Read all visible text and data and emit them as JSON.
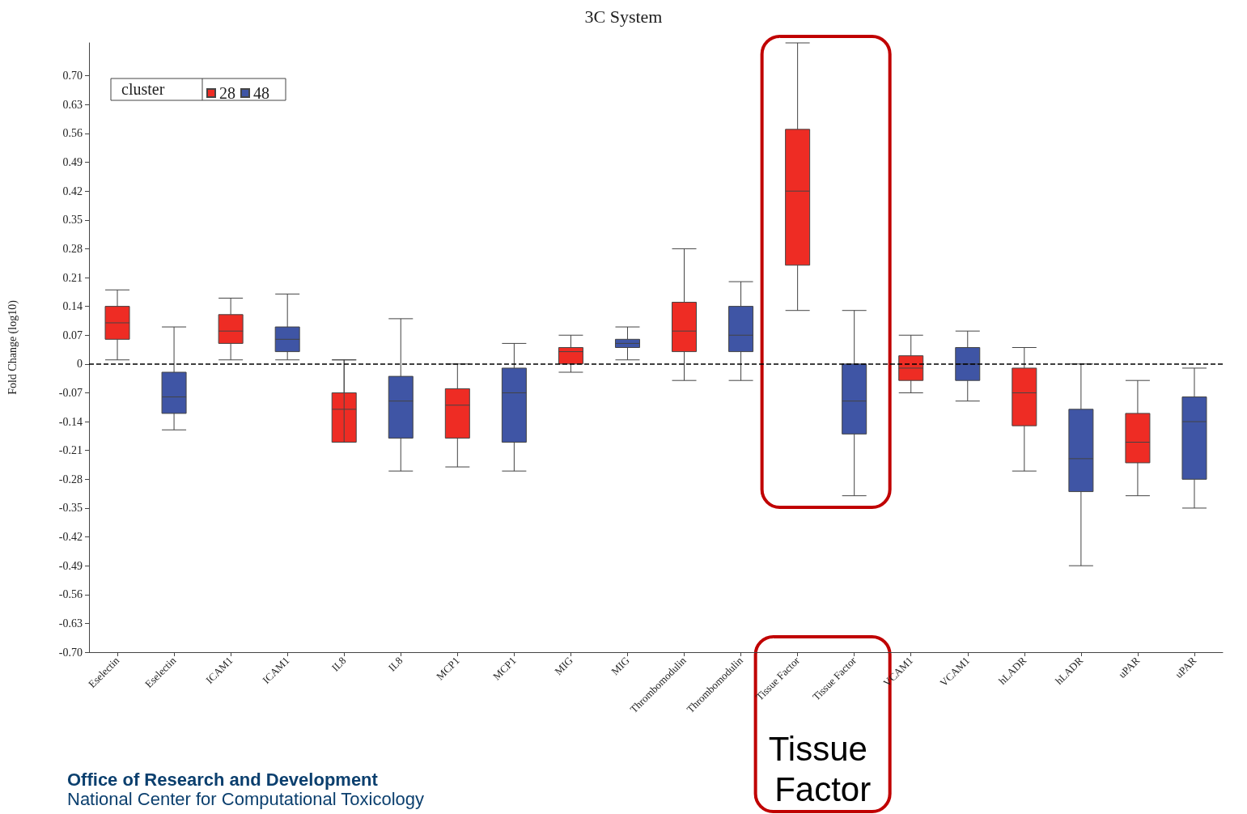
{
  "chart_data": {
    "type": "box",
    "title": "3C System",
    "ylabel": "Fold Change (log10)",
    "legend_title": "cluster",
    "legend": "top left",
    "grid": false,
    "categories": [
      "Eselectin",
      "Eselectin",
      "ICAM1",
      "ICAM1",
      "IL8",
      "IL8",
      "MCP1",
      "MCP1",
      "MIG",
      "MIG",
      "Thrombomodulin",
      "Thrombomodulin",
      "Tissue Factor",
      "Tissue Factor",
      "VCAM1",
      "VCAM1",
      "hLADR",
      "hLADR",
      "uPAR",
      "uPAR"
    ],
    "ylim": [
      -0.7,
      0.78
    ],
    "yticks": [
      {
        "value": -0.7,
        "label": "-0.70"
      },
      {
        "value": -0.63,
        "label": "-0.63"
      },
      {
        "value": -0.56,
        "label": "-0.56"
      },
      {
        "value": -0.49,
        "label": "-0.49"
      },
      {
        "value": -0.42,
        "label": "-0.42"
      },
      {
        "value": -0.35,
        "label": "-0.35"
      },
      {
        "value": -0.28,
        "label": "-0.28"
      },
      {
        "value": -0.21,
        "label": "-0.21"
      },
      {
        "value": -0.14,
        "label": "-0.14"
      },
      {
        "value": -0.07,
        "label": "-0.07"
      },
      0,
      {
        "value": 0.07,
        "label": "0.07"
      },
      {
        "value": 0.14,
        "label": "0.14"
      },
      {
        "value": 0.21,
        "label": "0.21"
      },
      {
        "value": 0.28,
        "label": "0.28"
      },
      {
        "value": 0.35,
        "label": "0.35"
      },
      {
        "value": 0.42,
        "label": "0.42"
      },
      {
        "value": 0.49,
        "label": "0.49"
      },
      {
        "value": 0.56,
        "label": "0.56"
      },
      {
        "value": 0.63,
        "label": "0.63"
      },
      {
        "value": 0.7,
        "label": "0.70"
      }
    ],
    "ref_lines": [
      {
        "axis": "y",
        "value": 0,
        "label": null,
        "color": "#000000",
        "line_style": "dashed"
      }
    ],
    "series": [
      {
        "name": "28",
        "color": "#ee2c24",
        "boxes": [
          {
            "low": 0.01,
            "q1": 0.06,
            "median": 0.1,
            "q3": 0.14,
            "high": 0.18
          },
          null,
          {
            "low": 0.01,
            "q1": 0.05,
            "median": 0.08,
            "q3": 0.12,
            "high": 0.16
          },
          null,
          {
            "low": 0.01,
            "q1": -0.19,
            "median": -0.11,
            "q3": -0.07,
            "high": 0.01
          },
          null,
          {
            "low": -0.25,
            "q1": -0.18,
            "median": -0.1,
            "q3": -0.06,
            "high": 0.0
          },
          null,
          {
            "low": -0.02,
            "q1": 0.0,
            "median": 0.03,
            "q3": 0.04,
            "high": 0.07
          },
          null,
          {
            "low": -0.04,
            "q1": 0.03,
            "median": 0.08,
            "q3": 0.15,
            "high": 0.28
          },
          null,
          {
            "low": 0.13,
            "q1": 0.24,
            "median": 0.42,
            "q3": 0.57,
            "high": 0.78
          },
          null,
          {
            "low": -0.07,
            "q1": -0.04,
            "median": -0.01,
            "q3": 0.02,
            "high": 0.07
          },
          null,
          {
            "low": -0.26,
            "q1": -0.15,
            "median": -0.07,
            "q3": -0.01,
            "high": 0.04
          },
          null,
          {
            "low": -0.32,
            "q1": -0.24,
            "median": -0.19,
            "q3": -0.12,
            "high": -0.04
          },
          null
        ]
      },
      {
        "name": "48",
        "color": "#3f55a5",
        "boxes": [
          null,
          {
            "low": -0.16,
            "q1": -0.12,
            "median": -0.08,
            "q3": -0.02,
            "high": 0.09
          },
          null,
          {
            "low": 0.01,
            "q1": 0.03,
            "median": 0.06,
            "q3": 0.09,
            "high": 0.17
          },
          null,
          {
            "low": -0.26,
            "q1": -0.18,
            "median": -0.09,
            "q3": -0.03,
            "high": 0.11
          },
          null,
          {
            "low": -0.26,
            "q1": -0.19,
            "median": -0.07,
            "q3": -0.01,
            "high": 0.05
          },
          null,
          {
            "low": 0.01,
            "q1": 0.04,
            "median": 0.05,
            "q3": 0.06,
            "high": 0.09
          },
          null,
          {
            "low": -0.04,
            "q1": 0.03,
            "median": 0.07,
            "q3": 0.14,
            "high": 0.2
          },
          null,
          {
            "low": -0.32,
            "q1": -0.17,
            "median": -0.09,
            "q3": 0.0,
            "high": 0.13
          },
          null,
          {
            "low": -0.09,
            "q1": -0.04,
            "median": 0.0,
            "q3": 0.04,
            "high": 0.08
          },
          null,
          {
            "low": -0.49,
            "q1": -0.31,
            "median": -0.23,
            "q3": -0.11,
            "high": 0.0
          },
          null,
          {
            "low": -0.35,
            "q1": -0.28,
            "median": -0.14,
            "q3": -0.08,
            "high": -0.01
          }
        ]
      }
    ],
    "annotations": [
      "Tissue Factor",
      "Office of Research and Development",
      "National Center for Computational Toxicology"
    ]
  }
}
